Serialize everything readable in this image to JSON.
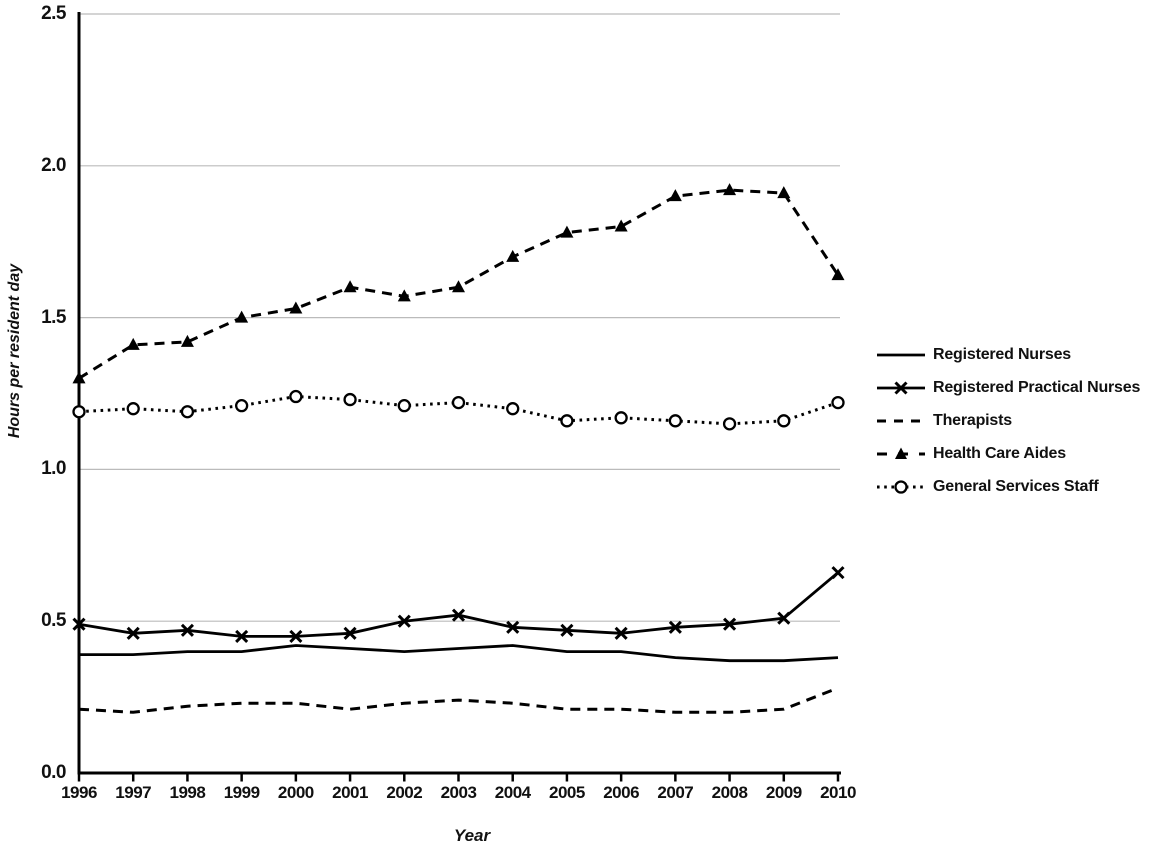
{
  "figure": {
    "background": "#ffffff",
    "text_color": "#111111",
    "axis_color": "#000000",
    "gridline_color": "#bbbbbb",
    "series_color": "#000000"
  },
  "chart_data": {
    "type": "line",
    "title": "",
    "xlabel": "Year",
    "ylabel": "Hours per resident day",
    "x": [
      1996,
      1997,
      1998,
      1999,
      2000,
      2001,
      2002,
      2003,
      2004,
      2005,
      2006,
      2007,
      2008,
      2009,
      2010
    ],
    "ylim": [
      0.0,
      2.5
    ],
    "ytick_labels": [
      "0.0",
      "0.5",
      "1.0",
      "1.5",
      "2.0",
      "2.5"
    ],
    "grid": true,
    "legend_position": "right-middle",
    "series": [
      {
        "name": "Registered Nurses",
        "line_style": "solid",
        "marker": "none",
        "values": [
          0.39,
          0.39,
          0.4,
          0.4,
          0.42,
          0.41,
          0.4,
          0.41,
          0.42,
          0.4,
          0.4,
          0.38,
          0.37,
          0.37,
          0.38
        ]
      },
      {
        "name": "Registered Practical Nurses",
        "line_style": "solid",
        "marker": "x",
        "values": [
          0.49,
          0.46,
          0.47,
          0.45,
          0.45,
          0.46,
          0.5,
          0.52,
          0.48,
          0.47,
          0.46,
          0.48,
          0.49,
          0.51,
          0.66
        ]
      },
      {
        "name": "Therapists",
        "line_style": "dashed",
        "marker": "none",
        "values": [
          0.21,
          0.2,
          0.22,
          0.23,
          0.23,
          0.21,
          0.23,
          0.24,
          0.23,
          0.21,
          0.21,
          0.2,
          0.2,
          0.21,
          0.28
        ]
      },
      {
        "name": "Health Care Aides",
        "line_style": "dashed",
        "marker": "triangle",
        "values": [
          1.3,
          1.41,
          1.42,
          1.5,
          1.53,
          1.6,
          1.57,
          1.6,
          1.7,
          1.78,
          1.8,
          1.9,
          1.92,
          1.91,
          1.64
        ]
      },
      {
        "name": "General Services Staff",
        "line_style": "dotted",
        "marker": "circle-open",
        "values": [
          1.19,
          1.2,
          1.19,
          1.21,
          1.24,
          1.23,
          1.21,
          1.22,
          1.2,
          1.16,
          1.17,
          1.16,
          1.15,
          1.16,
          1.22
        ]
      }
    ]
  }
}
